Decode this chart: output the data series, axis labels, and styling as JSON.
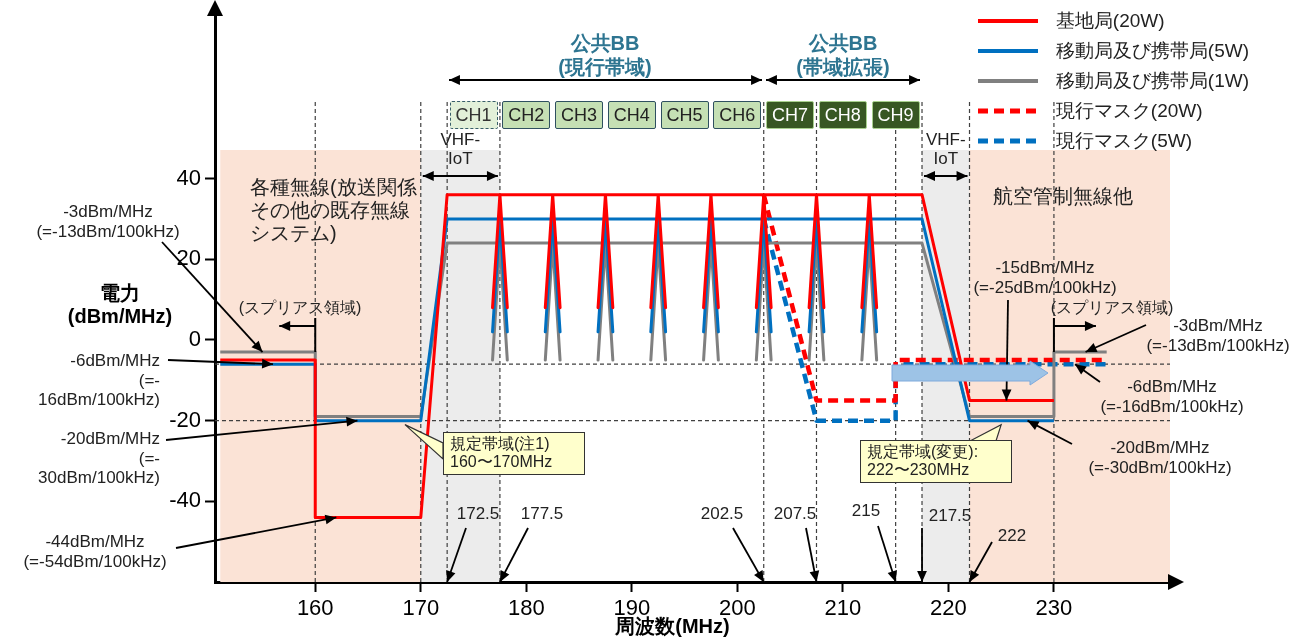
{
  "chart_data": {
    "type": "line",
    "xlabel": "周波数(MHz)",
    "ylabel": "電力\n(dBm/MHz)",
    "xlim": [
      150.5,
      241
    ],
    "ylim": [
      -60,
      80
    ],
    "xticks": [
      160,
      170,
      180,
      190,
      200,
      210,
      220,
      230
    ],
    "yticks": [
      -40,
      -20,
      0,
      20,
      40
    ],
    "legend": "top right",
    "marker": "none",
    "series": [
      {
        "name": "基地局(20W)",
        "color": "#ff0000",
        "line_style": "solid",
        "x": [
          151,
          160,
          160,
          170,
          172.5,
          177.5,
          176.8,
          177.5,
          178.2,
          177.5,
          182.5,
          181.8,
          182.5,
          183.2,
          182.5,
          187.5,
          186.8,
          187.5,
          188.2,
          187.5,
          192.5,
          191.8,
          192.5,
          193.2,
          192.5,
          197.5,
          196.8,
          197.5,
          198.2,
          197.5,
          202.5,
          201.8,
          202.5,
          203.2,
          202.5,
          207.5,
          206.8,
          207.5,
          208.2,
          207.5,
          212.5,
          211.8,
          212.5,
          213.2,
          212.5,
          217.5,
          222,
          230
        ],
        "values": [
          -5,
          -5,
          -44,
          -44,
          36,
          36,
          8,
          36,
          8,
          36,
          36,
          8,
          36,
          8,
          36,
          36,
          8,
          36,
          8,
          36,
          36,
          8,
          36,
          8,
          36,
          36,
          8,
          36,
          8,
          36,
          36,
          8,
          36,
          8,
          36,
          36,
          8,
          36,
          8,
          36,
          36,
          8,
          36,
          8,
          36,
          36,
          -15,
          -15
        ]
      },
      {
        "name": "移動局及び携帯局(5W)",
        "color": "#0070c0",
        "line_style": "solid",
        "x": [
          151,
          160,
          160,
          170,
          172.5,
          177.5,
          176.8,
          177.5,
          178.2,
          177.5,
          182.5,
          181.8,
          182.5,
          183.2,
          182.5,
          187.5,
          186.8,
          187.5,
          188.2,
          187.5,
          192.5,
          191.8,
          192.5,
          193.2,
          192.5,
          197.5,
          196.8,
          197.5,
          198.2,
          197.5,
          202.5,
          201.8,
          202.5,
          203.2,
          202.5,
          207.5,
          206.8,
          207.5,
          208.2,
          207.5,
          212.5,
          211.8,
          212.5,
          213.2,
          212.5,
          217.5,
          222,
          230
        ],
        "values": [
          -6,
          -6,
          -20,
          -20,
          30,
          30,
          2,
          30,
          2,
          30,
          30,
          2,
          30,
          2,
          30,
          30,
          2,
          30,
          2,
          30,
          30,
          2,
          30,
          2,
          30,
          30,
          2,
          30,
          2,
          30,
          30,
          2,
          30,
          2,
          30,
          30,
          2,
          30,
          2,
          30,
          30,
          2,
          30,
          2,
          30,
          30,
          -20,
          -20
        ]
      },
      {
        "name": "移動局及び携帯局(1W)",
        "color": "#808080",
        "line_style": "solid",
        "x": [
          151,
          160,
          160,
          170,
          172.5,
          177.5,
          176.8,
          177.5,
          178.2,
          177.5,
          182.5,
          181.8,
          182.5,
          183.2,
          182.5,
          187.5,
          186.8,
          187.5,
          188.2,
          187.5,
          192.5,
          191.8,
          192.5,
          193.2,
          192.5,
          197.5,
          196.8,
          197.5,
          198.2,
          197.5,
          202.5,
          201.8,
          202.5,
          203.2,
          202.5,
          207.5,
          206.8,
          207.5,
          208.2,
          207.5,
          212.5,
          211.8,
          212.5,
          213.2,
          212.5,
          217.5,
          222,
          230,
          230,
          235
        ],
        "values": [
          -3,
          -3,
          -19,
          -19,
          24,
          24,
          -5,
          24,
          -5,
          24,
          24,
          -5,
          24,
          -5,
          24,
          24,
          -5,
          24,
          -5,
          24,
          24,
          -5,
          24,
          -5,
          24,
          24,
          -5,
          24,
          -5,
          24,
          24,
          -5,
          24,
          -5,
          24,
          24,
          -5,
          24,
          -5,
          24,
          24,
          -5,
          24,
          -5,
          24,
          24,
          -19,
          -19,
          -3,
          -3
        ]
      },
      {
        "name": "現行マスク(20W)",
        "color": "#ff0000",
        "line_style": "dashed",
        "x": [
          202.5,
          207.5,
          215,
          215,
          235
        ],
        "values": [
          36,
          -15,
          -15,
          -5,
          -5
        ]
      },
      {
        "name": "現行マスク(5W)",
        "color": "#0070c0",
        "line_style": "dashed",
        "x": [
          202.5,
          207.5,
          215,
          215,
          235
        ],
        "values": [
          30,
          -20,
          -20,
          -6,
          -6
        ]
      }
    ],
    "bands": [
      {
        "axis": "x",
        "from": 151,
        "to": 170,
        "label": "各種無線(放送関係その他の既存無線システム)",
        "color": "#fbe3d6"
      },
      {
        "axis": "x",
        "from": 170,
        "to": 177.5,
        "label": "VHF-\nIoT",
        "color": "#ececec"
      },
      {
        "axis": "x",
        "from": 217.5,
        "to": 222,
        "label": "VHF-\nIoT",
        "color": "#ececec"
      },
      {
        "axis": "x",
        "from": 222,
        "to": 241,
        "label": "航空管制無線他",
        "color": "#fbe3d6"
      }
    ],
    "ref_lines": [
      {
        "axis": "x",
        "value": 160,
        "color": "#404040",
        "line_style": "dashed"
      },
      {
        "axis": "x",
        "value": 170,
        "color": "#404040",
        "line_style": "dashed"
      },
      {
        "axis": "x",
        "value": 172.5,
        "color": "#404040",
        "line_style": "dashed"
      },
      {
        "axis": "x",
        "value": 177.5,
        "color": "#404040",
        "line_style": "dashed"
      },
      {
        "axis": "x",
        "value": 202.5,
        "color": "#404040",
        "line_style": "dashed"
      },
      {
        "axis": "x",
        "value": 207.5,
        "color": "#404040",
        "line_style": "dashed"
      },
      {
        "axis": "x",
        "value": 215,
        "color": "#404040",
        "line_style": "dashed"
      },
      {
        "axis": "x",
        "value": 217.5,
        "color": "#404040",
        "line_style": "dashed"
      },
      {
        "axis": "x",
        "value": 222,
        "color": "#404040",
        "line_style": "dashed"
      },
      {
        "axis": "x",
        "value": 230,
        "color": "#404040",
        "line_style": "dashed"
      },
      {
        "axis": "y",
        "value": -6,
        "color": "#404040",
        "line_style": "dashed"
      },
      {
        "axis": "y",
        "value": -20,
        "color": "#404040",
        "line_style": "dashed"
      }
    ],
    "annotations": [
      "公共BB\n(現行帯域)",
      "公共BB\n(帯域拡張)",
      "CH1",
      "CH2",
      "CH3",
      "CH4",
      "CH5",
      "CH6",
      "CH7",
      "CH8",
      "CH9",
      {
        "text": "-3dBm/MHz\n(=-13dBm/100kHz)",
        "x": 155,
        "y": -3
      },
      {
        "text": "(スプリアス領域)",
        "x": 160,
        "y": -3
      },
      {
        "text": "-6dBm/MHz\n(=-\n16dBm/100kHz)",
        "x": 156,
        "y": -6
      },
      {
        "text": "-20dBm/MHz\n(=-\n30dBm/100kHz)",
        "x": 164,
        "y": -20
      },
      {
        "text": "-44dBm/MHz\n(=-54dBm/100kHz)",
        "x": 162,
        "y": -44
      },
      {
        "text": "規定帯域(注1)\n160〜170MHz",
        "x": 168.5,
        "y": -21
      },
      {
        "text": "-15dBm/MHz\n(=-25dBm/100kHz)",
        "x": 225.5,
        "y": -15
      },
      {
        "text": "(スプリアス領域)",
        "x": 230,
        "y": -3
      },
      {
        "text": "-3dBm/MHz\n(=-13dBm/100kHz)",
        "x": 233,
        "y": -3
      },
      {
        "text": "-6dBm/MHz\n(=-16dBm/100kHz)",
        "x": 232,
        "y": -6
      },
      {
        "text": "-20dBm/MHz\n(=-30dBm/100kHz)",
        "x": 227.5,
        "y": -20
      },
      {
        "text": "規定帯域(変更):\n222〜230MHz",
        "x": 225,
        "y": -21
      },
      {
        "text": "172.5",
        "x": 172.5,
        "y": -60
      },
      {
        "text": "177.5",
        "x": 177.5,
        "y": -60
      },
      {
        "text": "202.5",
        "x": 202.5,
        "y": -60
      },
      {
        "text": "207.5",
        "x": 207.5,
        "y": -60
      },
      {
        "text": "215",
        "x": 215,
        "y": -60
      },
      {
        "text": "217.5",
        "x": 217.5,
        "y": -60
      },
      {
        "text": "222",
        "x": 222,
        "y": -60
      }
    ]
  }
}
